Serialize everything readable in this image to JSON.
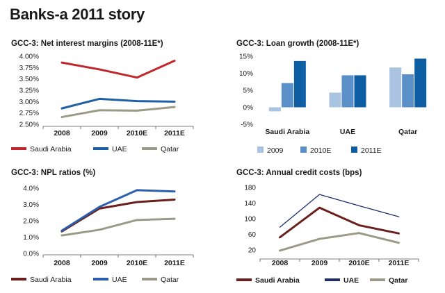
{
  "page": {
    "title": "Banks-a 2011 story"
  },
  "chart_data": [
    {
      "id": "nim",
      "type": "line",
      "title": "GCC-3: Net interest margins (2008-11E*)",
      "categories": [
        "2008",
        "2009",
        "2010E",
        "2011E"
      ],
      "ylim": [
        2.5,
        4.0
      ],
      "yticks": [
        2.5,
        2.75,
        3.0,
        3.25,
        3.5,
        3.75,
        4.0
      ],
      "ytick_labels": [
        "2.50%",
        "2.75%",
        "3.00%",
        "3.25%",
        "3.50%",
        "3.75%",
        "4.00%"
      ],
      "series": [
        {
          "name": "Saudi Arabia",
          "values": [
            3.86,
            3.71,
            3.53,
            3.9
          ],
          "color": "#c0272d"
        },
        {
          "name": "UAE",
          "values": [
            2.85,
            3.06,
            3.01,
            3.0
          ],
          "color": "#1f5fa6"
        },
        {
          "name": "Qatar",
          "values": [
            2.66,
            2.81,
            2.8,
            2.88
          ],
          "color": "#9a9a86"
        }
      ]
    },
    {
      "id": "loan",
      "type": "bar",
      "title": "GCC-3: Loan growth (2008-11E*)",
      "categories": [
        "Saudi Arabia",
        "UAE",
        "Qatar"
      ],
      "ylim": [
        -5,
        15
      ],
      "yticks": [
        -5,
        0,
        5,
        10,
        15
      ],
      "ytick_labels": [
        "-5%",
        "0%",
        "5%",
        "10%",
        "15%"
      ],
      "series": [
        {
          "name": "2009",
          "values": [
            -1.2,
            4.3,
            11.7
          ],
          "color": "#a9c3e0"
        },
        {
          "name": "2010E",
          "values": [
            7.1,
            9.4,
            9.7
          ],
          "color": "#5a8fc7"
        },
        {
          "name": "2011E",
          "values": [
            13.6,
            9.4,
            14.3
          ],
          "color": "#0d5ea3"
        }
      ]
    },
    {
      "id": "npl",
      "type": "line",
      "title": "GCC-3: NPL ratios (%)",
      "categories": [
        "2008",
        "2009",
        "2010E",
        "2011E"
      ],
      "ylim": [
        0,
        4
      ],
      "yticks": [
        0,
        1,
        2,
        3,
        4
      ],
      "ytick_labels": [
        "0.0%",
        "1.0%",
        "2.0%",
        "3.0%",
        "4.0%"
      ],
      "series": [
        {
          "name": "Saudi Arabia",
          "values": [
            1.35,
            2.75,
            3.15,
            3.3
          ],
          "color": "#6b1f1c"
        },
        {
          "name": "UAE",
          "values": [
            1.4,
            2.85,
            3.88,
            3.8
          ],
          "color": "#2b5fae"
        },
        {
          "name": "Qatar",
          "values": [
            1.1,
            1.45,
            2.05,
            2.12
          ],
          "color": "#9a9a86"
        }
      ]
    },
    {
      "id": "credit",
      "type": "line",
      "title": "GCC-3: Annual credit costs (bps)",
      "categories": [
        "2008",
        "2009",
        "2010E",
        "2011E"
      ],
      "ylim": [
        0,
        180
      ],
      "yticks": [
        20,
        60,
        100,
        140,
        180
      ],
      "ytick_labels": [
        "20",
        "60",
        "100",
        "140",
        "180"
      ],
      "ytick_label_values": [
        20,
        60,
        100,
        140,
        180
      ],
      "series": [
        {
          "name": "Saudi Arabia",
          "values": [
            52,
            128,
            83,
            62
          ],
          "color": "#6b1f1c"
        },
        {
          "name": "UAE",
          "values": [
            78,
            162,
            133,
            105
          ],
          "color": "#1c2f6b"
        },
        {
          "name": "Qatar",
          "values": [
            18,
            48,
            63,
            38
          ],
          "color": "#9a9a86"
        }
      ]
    }
  ]
}
